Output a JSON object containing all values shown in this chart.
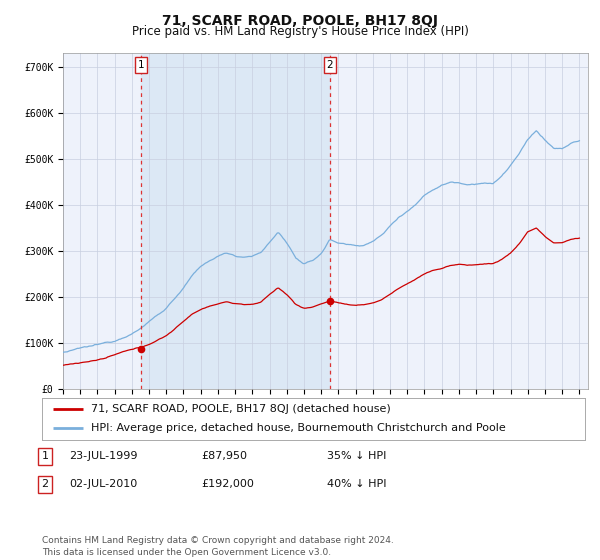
{
  "title": "71, SCARF ROAD, POOLE, BH17 8QJ",
  "subtitle": "Price paid vs. HM Land Registry's House Price Index (HPI)",
  "footer": "Contains HM Land Registry data © Crown copyright and database right 2024.\nThis data is licensed under the Open Government Licence v3.0.",
  "legend_line1": "71, SCARF ROAD, POOLE, BH17 8QJ (detached house)",
  "legend_line2": "HPI: Average price, detached house, Bournemouth Christchurch and Poole",
  "transaction1_label": "1",
  "transaction1_date": "23-JUL-1999",
  "transaction1_price": "£87,950",
  "transaction1_hpi": "35% ↓ HPI",
  "transaction1_x": 1999.55,
  "transaction1_y": 87950,
  "transaction2_label": "2",
  "transaction2_date": "02-JUL-2010",
  "transaction2_price": "£192,000",
  "transaction2_hpi": "40% ↓ HPI",
  "transaction2_x": 2010.5,
  "transaction2_y": 192000,
  "ylim": [
    0,
    730000
  ],
  "yticks": [
    0,
    100000,
    200000,
    300000,
    400000,
    500000,
    600000,
    700000
  ],
  "ytick_labels": [
    "£0",
    "£100K",
    "£200K",
    "£300K",
    "£400K",
    "£500K",
    "£600K",
    "£700K"
  ],
  "xlim_start": 1995.0,
  "xlim_end": 2025.5,
  "background_color": "#ffffff",
  "plot_bg_color": "#eef2fb",
  "grid_color": "#c8cfe0",
  "red_line_color": "#cc0000",
  "blue_line_color": "#7aafdc",
  "shade_color": "#dce8f5",
  "dashed_color": "#dd3333",
  "title_fontsize": 10,
  "subtitle_fontsize": 8.5,
  "tick_fontsize": 7,
  "legend_fontsize": 8,
  "table_fontsize": 8,
  "footer_fontsize": 6.5,
  "hpi_anchors": [
    [
      1995.0,
      80000
    ],
    [
      1995.5,
      83000
    ],
    [
      1996.0,
      87000
    ],
    [
      1996.5,
      90000
    ],
    [
      1997.0,
      93000
    ],
    [
      1997.5,
      97000
    ],
    [
      1998.0,
      102000
    ],
    [
      1998.5,
      112000
    ],
    [
      1999.0,
      122000
    ],
    [
      1999.5,
      132000
    ],
    [
      2000.0,
      148000
    ],
    [
      2000.5,
      162000
    ],
    [
      2001.0,
      178000
    ],
    [
      2001.5,
      200000
    ],
    [
      2002.0,
      222000
    ],
    [
      2002.5,
      248000
    ],
    [
      2003.0,
      265000
    ],
    [
      2003.5,
      278000
    ],
    [
      2004.0,
      288000
    ],
    [
      2004.5,
      295000
    ],
    [
      2005.0,
      290000
    ],
    [
      2005.5,
      288000
    ],
    [
      2006.0,
      292000
    ],
    [
      2006.5,
      298000
    ],
    [
      2007.0,
      320000
    ],
    [
      2007.5,
      342000
    ],
    [
      2008.0,
      320000
    ],
    [
      2008.5,
      288000
    ],
    [
      2009.0,
      272000
    ],
    [
      2009.5,
      278000
    ],
    [
      2010.0,
      295000
    ],
    [
      2010.5,
      325000
    ],
    [
      2011.0,
      318000
    ],
    [
      2011.5,
      315000
    ],
    [
      2012.0,
      312000
    ],
    [
      2012.5,
      315000
    ],
    [
      2013.0,
      322000
    ],
    [
      2013.5,
      335000
    ],
    [
      2014.0,
      355000
    ],
    [
      2014.5,
      375000
    ],
    [
      2015.0,
      390000
    ],
    [
      2015.5,
      405000
    ],
    [
      2016.0,
      425000
    ],
    [
      2016.5,
      438000
    ],
    [
      2017.0,
      448000
    ],
    [
      2017.5,
      455000
    ],
    [
      2018.0,
      455000
    ],
    [
      2018.5,
      452000
    ],
    [
      2019.0,
      455000
    ],
    [
      2019.5,
      458000
    ],
    [
      2020.0,
      455000
    ],
    [
      2020.5,
      472000
    ],
    [
      2021.0,
      495000
    ],
    [
      2021.5,
      520000
    ],
    [
      2022.0,
      548000
    ],
    [
      2022.5,
      568000
    ],
    [
      2023.0,
      548000
    ],
    [
      2023.5,
      530000
    ],
    [
      2024.0,
      528000
    ],
    [
      2024.5,
      540000
    ],
    [
      2025.0,
      545000
    ]
  ],
  "red_anchors": [
    [
      1995.0,
      52000
    ],
    [
      1995.5,
      55000
    ],
    [
      1996.0,
      58000
    ],
    [
      1996.5,
      61000
    ],
    [
      1997.0,
      64000
    ],
    [
      1997.5,
      68000
    ],
    [
      1998.0,
      74000
    ],
    [
      1998.5,
      80000
    ],
    [
      1999.0,
      84000
    ],
    [
      1999.5,
      87950
    ],
    [
      2000.0,
      96000
    ],
    [
      2000.5,
      105000
    ],
    [
      2001.0,
      115000
    ],
    [
      2001.5,
      130000
    ],
    [
      2002.0,
      145000
    ],
    [
      2002.5,
      162000
    ],
    [
      2003.0,
      172000
    ],
    [
      2003.5,
      180000
    ],
    [
      2004.0,
      185000
    ],
    [
      2004.5,
      190000
    ],
    [
      2005.0,
      186000
    ],
    [
      2005.5,
      184000
    ],
    [
      2006.0,
      185000
    ],
    [
      2006.5,
      188000
    ],
    [
      2007.0,
      205000
    ],
    [
      2007.5,
      220000
    ],
    [
      2008.0,
      205000
    ],
    [
      2008.5,
      185000
    ],
    [
      2009.0,
      175000
    ],
    [
      2009.5,
      178000
    ],
    [
      2010.0,
      185000
    ],
    [
      2010.5,
      192000
    ],
    [
      2011.0,
      188000
    ],
    [
      2011.5,
      184000
    ],
    [
      2012.0,
      180000
    ],
    [
      2012.5,
      182000
    ],
    [
      2013.0,
      186000
    ],
    [
      2013.5,
      193000
    ],
    [
      2014.0,
      205000
    ],
    [
      2014.5,
      218000
    ],
    [
      2015.0,
      228000
    ],
    [
      2015.5,
      238000
    ],
    [
      2016.0,
      250000
    ],
    [
      2016.5,
      258000
    ],
    [
      2017.0,
      262000
    ],
    [
      2017.5,
      268000
    ],
    [
      2018.0,
      270000
    ],
    [
      2018.5,
      268000
    ],
    [
      2019.0,
      270000
    ],
    [
      2019.5,
      272000
    ],
    [
      2020.0,
      272000
    ],
    [
      2020.5,
      282000
    ],
    [
      2021.0,
      295000
    ],
    [
      2021.5,
      315000
    ],
    [
      2022.0,
      342000
    ],
    [
      2022.5,
      350000
    ],
    [
      2023.0,
      332000
    ],
    [
      2023.5,
      318000
    ],
    [
      2024.0,
      318000
    ],
    [
      2024.5,
      325000
    ],
    [
      2025.0,
      328000
    ]
  ]
}
